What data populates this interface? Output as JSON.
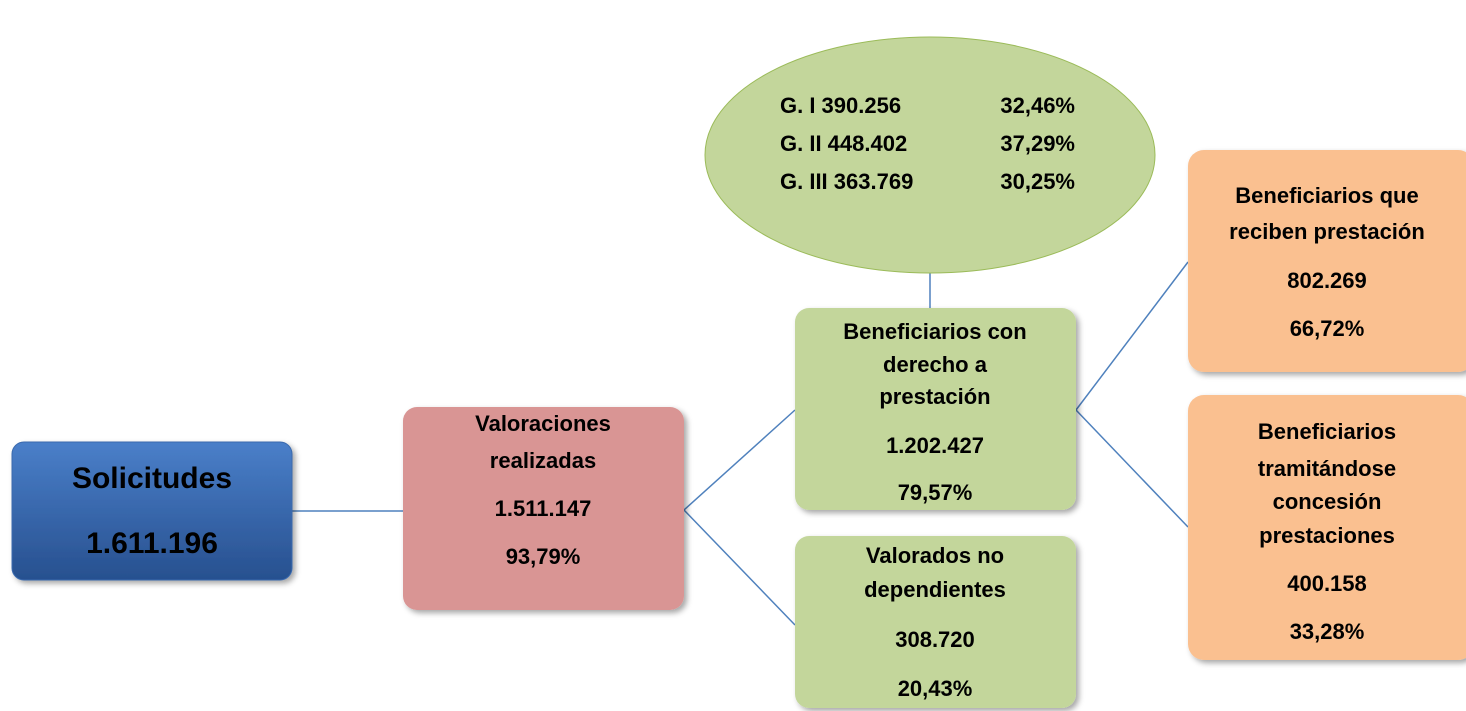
{
  "nodes": [
    {
      "lines": [
        "Solicitudes",
        "1.611.196"
      ]
    },
    {
      "lines": [
        "Valoraciones",
        "realizadas",
        "1.511.147",
        "93,79%"
      ]
    },
    {
      "lines": [
        "Beneficiarios con",
        "derecho a",
        "prestación",
        "1.202.427",
        "79,57%"
      ]
    },
    {
      "lines": [
        "Valorados no",
        "dependientes",
        "308.720",
        "20,43%"
      ]
    },
    {
      "lines": [
        "Beneficiarios que",
        "reciben prestación",
        "802.269",
        "66,72%"
      ]
    },
    {
      "lines": [
        "Beneficiarios",
        "tramitándose",
        "concesión",
        "prestaciones",
        "400.158",
        "33,28%"
      ]
    }
  ],
  "groups": [
    {
      "label": "G. I 390.256",
      "percent": "32,46%"
    },
    {
      "label": "G. II 448.402",
      "percent": "37,29%"
    },
    {
      "label": "G. III 363.769",
      "percent": "30,25%"
    }
  ]
}
